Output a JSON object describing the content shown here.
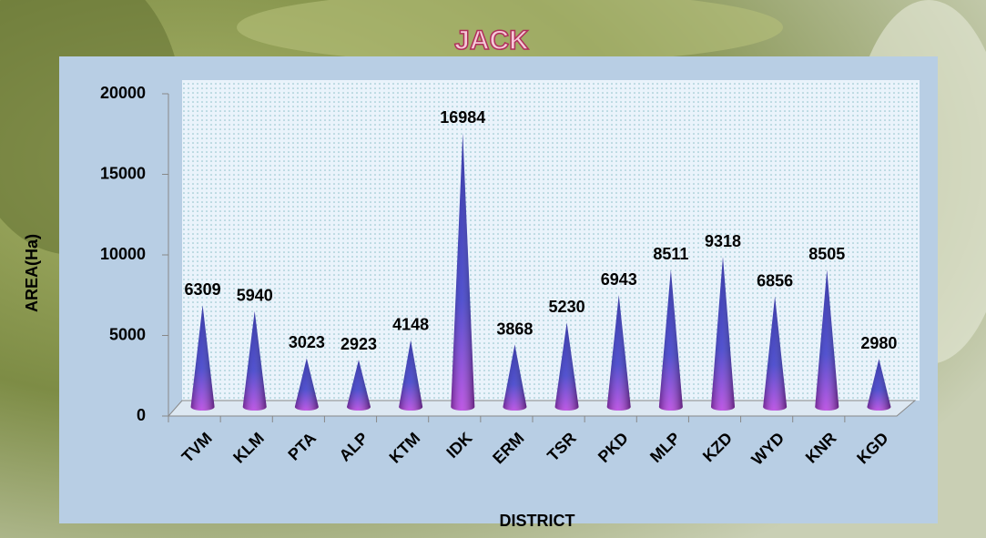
{
  "chart_data": {
    "type": "cone",
    "title": "JACK",
    "x_label": "DISTRICT",
    "y_label": "AREA(Ha)",
    "categories": [
      "TVM",
      "KLM",
      "PTA",
      "ALP",
      "KTM",
      "IDK",
      "ERM",
      "TSR",
      "PKD",
      "MLP",
      "KZD",
      "WYD",
      "KNR",
      "KGD"
    ],
    "values": [
      6309,
      5940,
      3023,
      2923,
      4148,
      16984,
      3868,
      5230,
      6943,
      8511,
      9318,
      6856,
      8505,
      2980
    ],
    "color": "#2a2ab8",
    "ylim": [
      0,
      20000
    ],
    "yticks": [
      0,
      5000,
      10000,
      15000,
      20000
    ]
  }
}
